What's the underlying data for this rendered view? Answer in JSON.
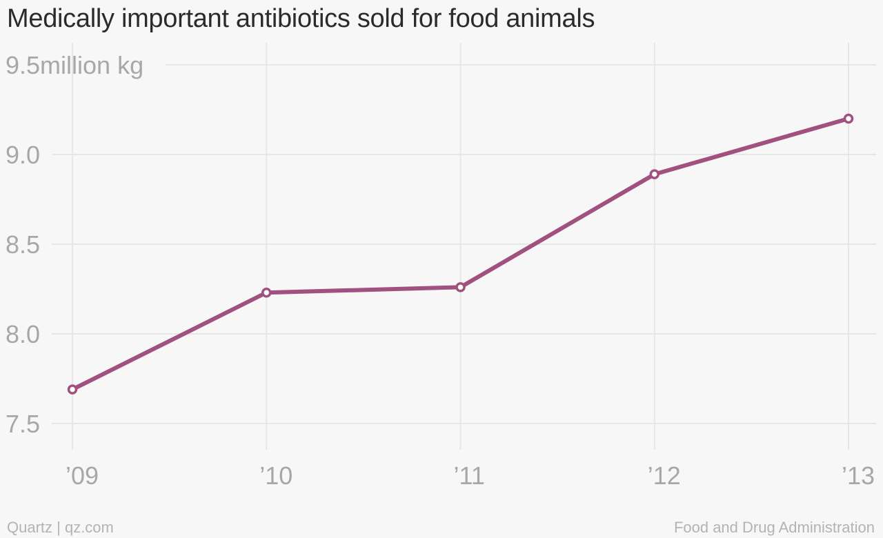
{
  "title": "Medically important antibiotics sold for food animals",
  "footer": {
    "credit": "Quartz | qz.com",
    "source": "Food and Drug Administration"
  },
  "colors": {
    "line": "#a0517f",
    "grid": "#e6e6e6",
    "tick_text": "#a7a7a7",
    "background": "#f7f7f7"
  },
  "chart_data": {
    "type": "line",
    "title": "Medically important antibiotics sold for food animals",
    "categories": [
      "’09",
      "’10",
      "’11",
      "’12",
      "’13"
    ],
    "series": [
      {
        "values": [
          7.69,
          8.23,
          8.26,
          8.89,
          9.2
        ]
      }
    ],
    "y_unit": "million kg",
    "ylim": [
      7.5,
      9.5
    ],
    "y_ticks": [
      7.5,
      8.0,
      8.5,
      9.0,
      9.5
    ],
    "y_tick_labels": [
      "7.5",
      "8.0",
      "8.5",
      "9.0",
      "9.5"
    ],
    "grid": true,
    "markers": "hollow-circle",
    "xlabel": "",
    "ylabel": ""
  }
}
